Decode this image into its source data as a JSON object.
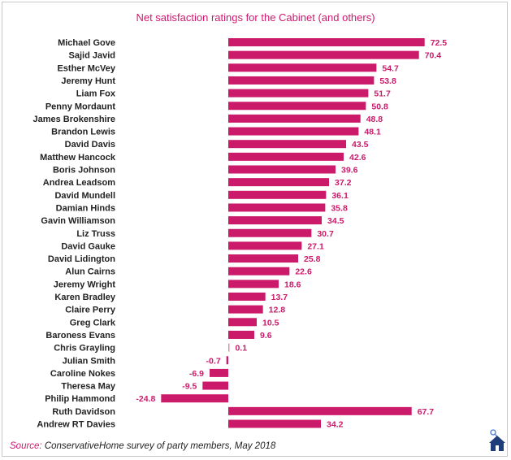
{
  "chart_data": {
    "type": "bar",
    "orientation": "horizontal",
    "title": "Net satisfaction ratings for the Cabinet (and others)",
    "xlabel": "",
    "ylabel": "",
    "bar_color": "#cc1a6b",
    "label_color": "#cc1a6b",
    "categories": [
      "Michael Gove",
      "Sajid Javid",
      "Esther McVey",
      "Jeremy Hunt",
      "Liam Fox",
      "Penny Mordaunt",
      "James Brokenshire",
      "Brandon Lewis",
      "David Davis",
      "Matthew Hancock",
      "Boris Johnson",
      "Andrea Leadsom",
      "David Mundell",
      "Damian Hinds",
      "Gavin Williamson",
      "Liz Truss",
      "David Gauke",
      "David Lidington",
      "Alun Cairns",
      "Jeremy Wright",
      "Karen Bradley",
      "Claire Perry",
      "Greg Clark",
      "Baroness Evans",
      "Chris Grayling",
      "Julian Smith",
      "Caroline Nokes",
      "Theresa May",
      "Philip Hammond",
      "Ruth Davidson",
      "Andrew RT Davies"
    ],
    "values": [
      72.5,
      70.4,
      54.7,
      53.8,
      51.7,
      50.8,
      48.8,
      48.1,
      43.5,
      42.6,
      39.6,
      37.2,
      36.1,
      35.8,
      34.5,
      30.7,
      27.1,
      25.8,
      22.6,
      18.6,
      13.7,
      12.8,
      10.5,
      9.6,
      0.1,
      -0.7,
      -6.9,
      -9.5,
      -24.8,
      67.7,
      34.2
    ],
    "value_labels": [
      "72.5",
      "70.4",
      "54.7",
      "53.8",
      "51.7",
      "50.8",
      "48.8",
      "48.1",
      "43.5",
      "42.6",
      "39.6",
      "37.2",
      "36.1",
      "35.8",
      "34.5",
      "30.7",
      "27.1",
      "25.8",
      "22.6",
      "18.6",
      "13.7",
      "12.8",
      "10.5",
      "9.6",
      "0.1",
      "-0.7",
      "-6.9",
      "-9.5",
      "-24.8",
      "67.7",
      "34.2"
    ],
    "xlim": [
      -30,
      75
    ]
  },
  "footer": {
    "source_label": "Source:",
    "source_text": " ConservativeHome survey of party members, May 2018"
  },
  "logo": {
    "icon": "home-logo-icon"
  }
}
